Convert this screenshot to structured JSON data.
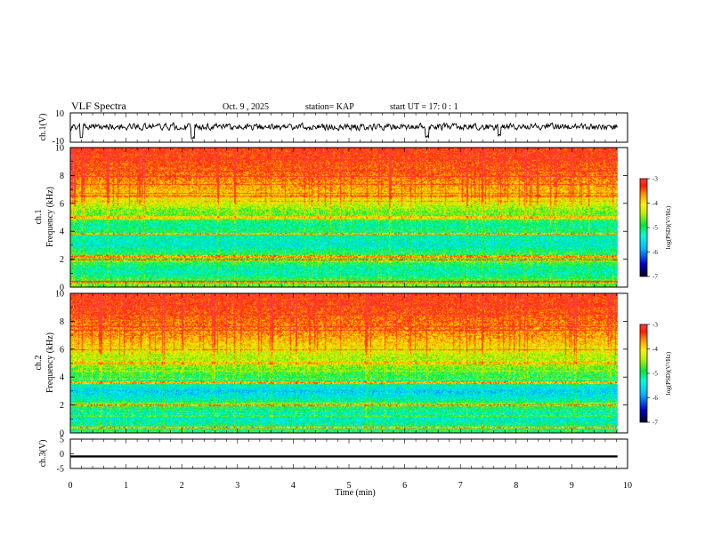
{
  "header": {
    "title": "VLF Spectra",
    "date": "Oct. 9  , 2025",
    "station": "station= KAP",
    "start": "start  UT  =   17: 0  : 1"
  },
  "chart_data": [
    {
      "type": "line",
      "name": "ch1-waveform",
      "ylabel": "ch.1(V)",
      "ylim": [
        -10,
        10
      ],
      "xlim": [
        0,
        10
      ],
      "data_extent_min": 9.82,
      "y_ticks": [
        "10",
        "-10"
      ],
      "trace": {
        "base": 0.6,
        "noise_amplitude": 3.0,
        "dips": [
          {
            "x": 0.2,
            "y": -6.5
          },
          {
            "x": 2.2,
            "y": -7.0
          },
          {
            "x": 6.4,
            "y": -6.0
          },
          {
            "x": 7.7,
            "y": -5.5
          }
        ]
      }
    },
    {
      "type": "heatmap",
      "name": "ch1-spectrogram",
      "ylabel": "ch.1\nFrequency (kHz)",
      "xlim": [
        0,
        10
      ],
      "ylim": [
        0,
        10
      ],
      "y_ticks": [
        "0",
        "2",
        "4",
        "6",
        "8",
        "10"
      ],
      "data_extent_min": 9.82,
      "colorbar": {
        "label": "log(PSD)(V²/Hz)",
        "range": [
          -7,
          -3
        ],
        "ticks": [
          "-3",
          "-4",
          "-5",
          "-6",
          "-7"
        ]
      },
      "level_profile": [
        {
          "f": 0.0,
          "v": -4.6
        },
        {
          "f": 0.5,
          "v": -4.8
        },
        {
          "f": 1.0,
          "v": -5.3
        },
        {
          "f": 1.5,
          "v": -5.1
        },
        {
          "f": 2.0,
          "v": -4.7
        },
        {
          "f": 2.5,
          "v": -5.0
        },
        {
          "f": 3.0,
          "v": -5.4
        },
        {
          "f": 3.5,
          "v": -5.3
        },
        {
          "f": 4.0,
          "v": -5.0
        },
        {
          "f": 4.5,
          "v": -5.2
        },
        {
          "f": 5.0,
          "v": -4.7
        },
        {
          "f": 5.5,
          "v": -4.6
        },
        {
          "f": 6.0,
          "v": -4.2
        },
        {
          "f": 7.0,
          "v": -3.8
        },
        {
          "f": 8.0,
          "v": -3.5
        },
        {
          "f": 9.0,
          "v": -3.3
        },
        {
          "f": 10.0,
          "v": -3.2
        }
      ],
      "bands": [
        {
          "f": 0.4,
          "v": -3.6
        },
        {
          "f": 2.0,
          "v": -3.6
        },
        {
          "f": 2.2,
          "v": -3.7
        },
        {
          "f": 3.8,
          "v": -3.8
        },
        {
          "f": 5.0,
          "v": -4.0
        },
        {
          "f": 6.5,
          "v": -3.6
        }
      ]
    },
    {
      "type": "heatmap",
      "name": "ch2-spectrogram",
      "ylabel": "ch.2\nFrequency (kHz)",
      "xlim": [
        0,
        10
      ],
      "ylim": [
        0,
        10
      ],
      "y_ticks": [
        "0",
        "2",
        "4",
        "6",
        "8",
        "10"
      ],
      "data_extent_min": 9.82,
      "colorbar": {
        "label": "log(PSD)(V²/Hz)",
        "range": [
          -7,
          -3
        ],
        "ticks": [
          "-3",
          "-4",
          "-5",
          "-6",
          "-7"
        ]
      },
      "level_profile": [
        {
          "f": 0.0,
          "v": -4.9
        },
        {
          "f": 0.5,
          "v": -5.1
        },
        {
          "f": 1.0,
          "v": -5.4
        },
        {
          "f": 1.5,
          "v": -5.3
        },
        {
          "f": 2.0,
          "v": -4.8
        },
        {
          "f": 2.5,
          "v": -5.4
        },
        {
          "f": 3.0,
          "v": -5.7
        },
        {
          "f": 3.5,
          "v": -5.2
        },
        {
          "f": 4.0,
          "v": -4.9
        },
        {
          "f": 4.5,
          "v": -4.7
        },
        {
          "f": 5.0,
          "v": -4.4
        },
        {
          "f": 5.5,
          "v": -4.4
        },
        {
          "f": 6.0,
          "v": -4.1
        },
        {
          "f": 7.0,
          "v": -3.7
        },
        {
          "f": 8.0,
          "v": -3.5
        },
        {
          "f": 9.0,
          "v": -3.3
        },
        {
          "f": 10.0,
          "v": -3.2
        }
      ],
      "bands": [
        {
          "f": 0.4,
          "v": -3.8
        },
        {
          "f": 2.0,
          "v": -3.7
        },
        {
          "f": 3.6,
          "v": -3.8
        },
        {
          "f": 5.0,
          "v": -3.9
        },
        {
          "f": 7.5,
          "v": -3.6
        }
      ]
    },
    {
      "type": "line",
      "name": "ch3-signal",
      "ylabel": "ch.3(V)",
      "ylim": [
        -5,
        5
      ],
      "xlim": [
        0,
        10
      ],
      "data_extent_min": 9.82,
      "y_ticks": [
        "5",
        "0",
        "-5"
      ],
      "level": -0.9,
      "band_halfwidth": 0.35
    }
  ],
  "xaxis": {
    "label": "Time  (min)",
    "range": [
      0,
      10
    ],
    "ticks": [
      "0",
      "1",
      "2",
      "3",
      "4",
      "5",
      "6",
      "7",
      "8",
      "9",
      "10"
    ]
  }
}
